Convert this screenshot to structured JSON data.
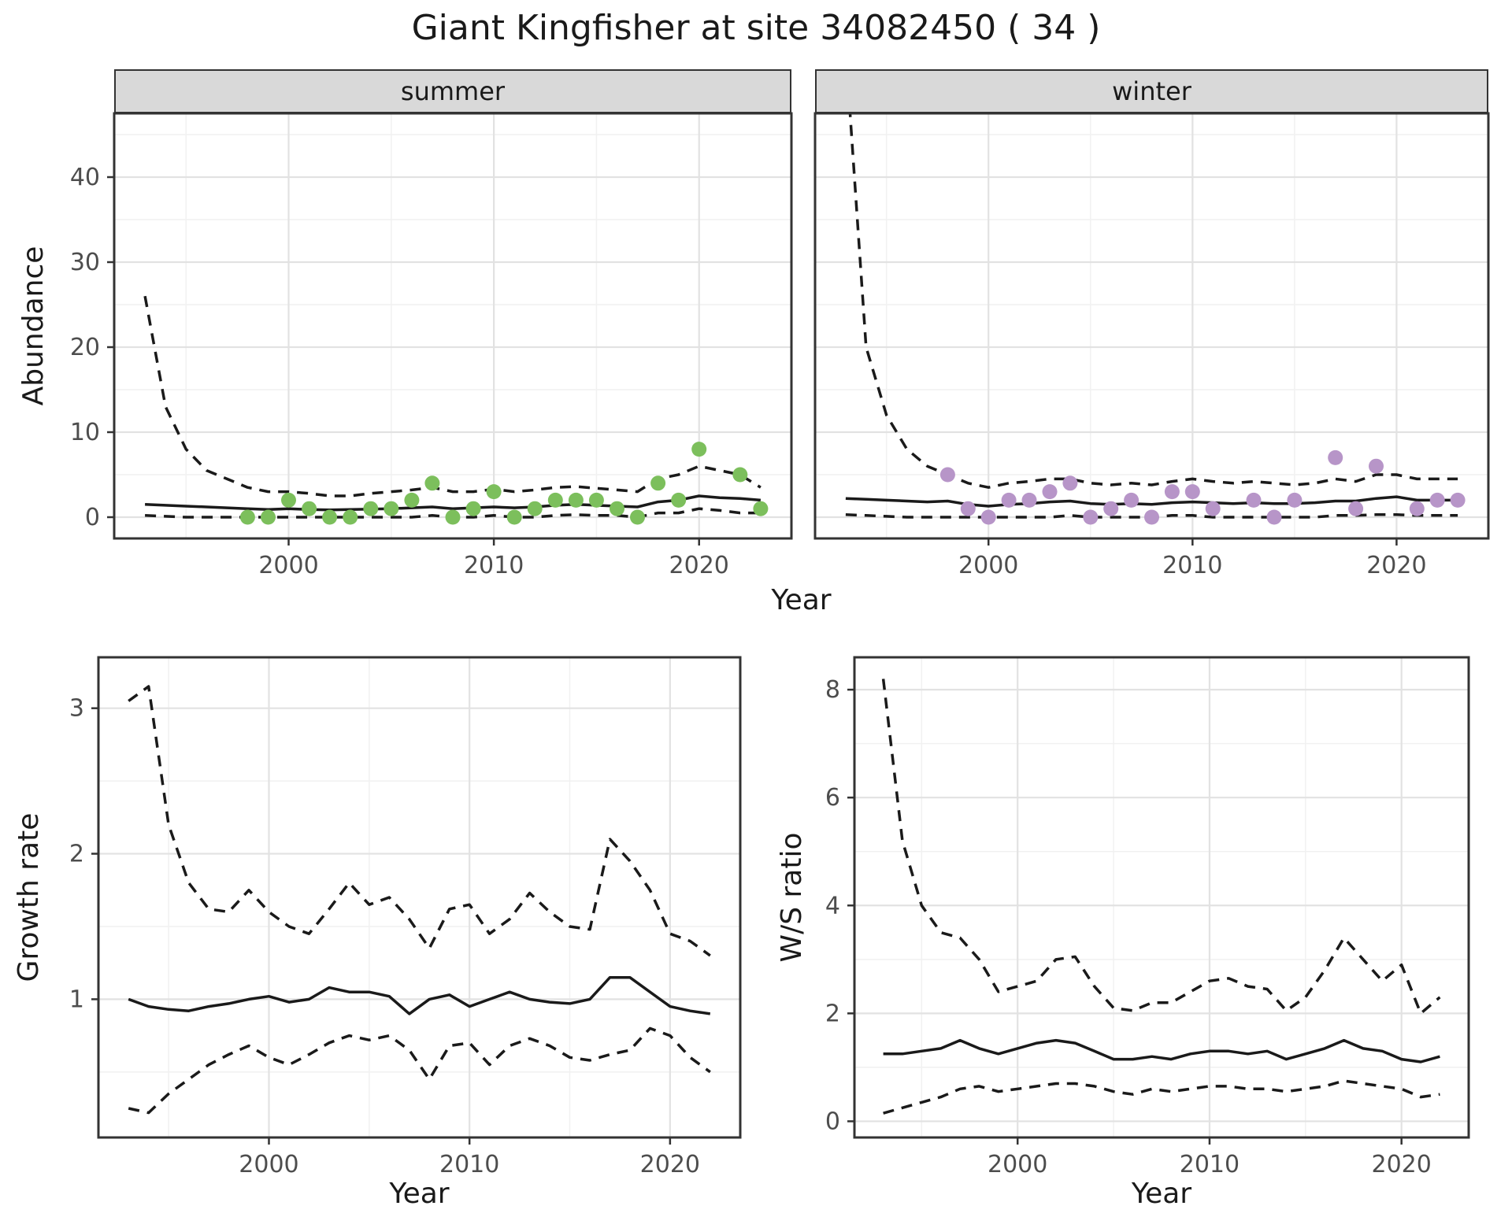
{
  "title": "Giant Kingfisher at site 34082450 ( 34 )",
  "style": {
    "summer_point_color": "#7CBF5C",
    "winter_point_color": "#B795C8",
    "line_color": "#1A1A1A",
    "panel_border_color": "#333333",
    "grid_major_color": "#E2E2E2",
    "grid_minor_color": "#F1F1F1",
    "strip_bg_color": "#D9D9D9",
    "axis_text_color": "#4D4D4D"
  },
  "chart_data": [
    {
      "id": "summer",
      "type": "line",
      "facet_label": "summer",
      "xlabel": "Year",
      "ylabel": "Abundance",
      "xlim": [
        1991.5,
        2024.5
      ],
      "ylim": [
        -2.5,
        47.5
      ],
      "xticks": [
        2000,
        2010,
        2020
      ],
      "yticks": [
        0,
        10,
        20,
        30,
        40
      ],
      "xminor": [
        1995,
        2005,
        2015
      ],
      "yminor": [
        5,
        15,
        25,
        35,
        45
      ],
      "x": [
        1993,
        1994,
        1995,
        1996,
        1997,
        1998,
        1999,
        2000,
        2001,
        2002,
        2003,
        2004,
        2005,
        2006,
        2007,
        2008,
        2009,
        2010,
        2011,
        2012,
        2013,
        2014,
        2015,
        2016,
        2017,
        2018,
        2019,
        2020,
        2021,
        2022,
        2023
      ],
      "series": [
        {
          "name": "modeled_median",
          "style": "solid",
          "values": [
            1.5,
            1.4,
            1.3,
            1.2,
            1.1,
            1.0,
            0.9,
            1.0,
            0.9,
            0.85,
            0.9,
            0.95,
            1.0,
            1.1,
            1.2,
            1.0,
            1.1,
            1.2,
            1.1,
            1.2,
            1.4,
            1.5,
            1.4,
            1.3,
            1.2,
            1.8,
            2.0,
            2.5,
            2.3,
            2.2,
            2.0
          ]
        },
        {
          "name": "upper_ci",
          "style": "dashed",
          "values": [
            26,
            13,
            8,
            5.5,
            4.5,
            3.5,
            3,
            3,
            2.8,
            2.5,
            2.5,
            2.8,
            3,
            3.2,
            3.5,
            3,
            3,
            3.3,
            3,
            3.2,
            3.5,
            3.6,
            3.4,
            3.2,
            3,
            4.5,
            5,
            6,
            5.5,
            5,
            3.5
          ]
        },
        {
          "name": "lower_ci",
          "style": "dashed",
          "values": [
            0.2,
            0.1,
            0,
            0,
            0,
            0,
            0,
            0,
            0,
            0,
            0,
            0,
            0,
            0,
            0.2,
            0,
            0,
            0.2,
            0,
            0,
            0.2,
            0.3,
            0.2,
            0.2,
            0,
            0.5,
            0.5,
            1,
            0.8,
            0.5,
            0.5
          ]
        }
      ],
      "points": {
        "name": "observed_counts",
        "color": "#7CBF5C",
        "x": [
          1998,
          1999,
          2000,
          2001,
          2002,
          2003,
          2004,
          2005,
          2006,
          2007,
          2008,
          2009,
          2010,
          2011,
          2012,
          2013,
          2014,
          2015,
          2016,
          2017,
          2018,
          2019,
          2020,
          2022,
          2023
        ],
        "y": [
          0,
          0,
          2,
          1,
          0,
          0,
          1,
          1,
          2,
          4,
          0,
          1,
          3,
          0,
          1,
          2,
          2,
          2,
          1,
          0,
          4,
          2,
          8,
          5,
          1
        ]
      }
    },
    {
      "id": "winter",
      "type": "line",
      "facet_label": "winter",
      "xlim": [
        1991.5,
        2024.5
      ],
      "ylim": [
        -2.5,
        47.5
      ],
      "xticks": [
        2000,
        2010,
        2020
      ],
      "yticks": [
        0,
        10,
        20,
        30,
        40
      ],
      "xminor": [
        1995,
        2005,
        2015
      ],
      "yminor": [
        5,
        15,
        25,
        35,
        45
      ],
      "x": [
        1993,
        1994,
        1995,
        1996,
        1997,
        1998,
        1999,
        2000,
        2001,
        2002,
        2003,
        2004,
        2005,
        2006,
        2007,
        2008,
        2009,
        2010,
        2011,
        2012,
        2013,
        2014,
        2015,
        2016,
        2017,
        2018,
        2019,
        2020,
        2021,
        2022,
        2023
      ],
      "series": [
        {
          "name": "modeled_median",
          "style": "solid",
          "values": [
            2.2,
            2.1,
            2.0,
            1.9,
            1.8,
            1.9,
            1.5,
            1.3,
            1.5,
            1.6,
            1.8,
            1.9,
            1.6,
            1.5,
            1.6,
            1.5,
            1.7,
            1.8,
            1.7,
            1.6,
            1.7,
            1.6,
            1.6,
            1.7,
            1.9,
            1.9,
            2.2,
            2.4,
            2.0,
            2.0,
            2.0
          ]
        },
        {
          "name": "upper_ci",
          "style": "dashed",
          "values": [
            55,
            20,
            12,
            8,
            6,
            5,
            4,
            3.5,
            4,
            4.2,
            4.5,
            4.5,
            4,
            3.8,
            4,
            3.8,
            4.2,
            4.5,
            4.2,
            4,
            4.2,
            4,
            3.8,
            4,
            4.5,
            4.2,
            5,
            5,
            4.5,
            4.5,
            4.5
          ]
        },
        {
          "name": "lower_ci",
          "style": "dashed",
          "values": [
            0.3,
            0.2,
            0.1,
            0,
            0,
            0,
            0,
            0,
            0,
            0,
            0,
            0.2,
            0,
            0,
            0,
            0,
            0.2,
            0.2,
            0,
            0,
            0,
            0,
            0,
            0,
            0.2,
            0.2,
            0.3,
            0.3,
            0.2,
            0.2,
            0.2
          ]
        }
      ],
      "points": {
        "name": "observed_counts",
        "color": "#B795C8",
        "x": [
          1998,
          1999,
          2000,
          2001,
          2002,
          2003,
          2004,
          2005,
          2006,
          2007,
          2008,
          2009,
          2010,
          2011,
          2013,
          2014,
          2015,
          2017,
          2018,
          2019,
          2021,
          2022,
          2023
        ],
        "y": [
          5,
          1,
          0,
          2,
          2,
          3,
          4,
          0,
          1,
          2,
          0,
          3,
          3,
          1,
          2,
          0,
          2,
          7,
          1,
          6,
          1,
          2,
          2
        ]
      }
    },
    {
      "id": "growth",
      "type": "line",
      "xlabel": "Year",
      "ylabel": "Growth rate",
      "xlim": [
        1991.5,
        2023.5
      ],
      "ylim": [
        0.05,
        3.35
      ],
      "xticks": [
        2000,
        2010,
        2020
      ],
      "yticks": [
        1,
        2,
        3
      ],
      "xminor": [
        1995,
        2005,
        2015
      ],
      "yminor": [
        0.5,
        1.5,
        2.5
      ],
      "x": [
        1993,
        1994,
        1995,
        1996,
        1997,
        1998,
        1999,
        2000,
        2001,
        2002,
        2003,
        2004,
        2005,
        2006,
        2007,
        2008,
        2009,
        2010,
        2011,
        2012,
        2013,
        2014,
        2015,
        2016,
        2017,
        2018,
        2019,
        2020,
        2021,
        2022
      ],
      "series": [
        {
          "name": "modeled_median",
          "style": "solid",
          "values": [
            1.0,
            0.95,
            0.93,
            0.92,
            0.95,
            0.97,
            1.0,
            1.02,
            0.98,
            1.0,
            1.08,
            1.05,
            1.05,
            1.02,
            0.9,
            1.0,
            1.03,
            0.95,
            1.0,
            1.05,
            1.0,
            0.98,
            0.97,
            1.0,
            1.15,
            1.15,
            1.05,
            0.95,
            0.92,
            0.9
          ]
        },
        {
          "name": "upper_ci",
          "style": "dashed",
          "values": [
            3.05,
            3.15,
            2.2,
            1.8,
            1.62,
            1.6,
            1.75,
            1.6,
            1.5,
            1.45,
            1.62,
            1.8,
            1.65,
            1.7,
            1.55,
            1.35,
            1.62,
            1.65,
            1.45,
            1.55,
            1.73,
            1.6,
            1.5,
            1.48,
            2.1,
            1.95,
            1.75,
            1.45,
            1.4,
            1.3
          ]
        },
        {
          "name": "lower_ci",
          "style": "dashed",
          "values": [
            0.25,
            0.22,
            0.35,
            0.45,
            0.55,
            0.62,
            0.68,
            0.6,
            0.55,
            0.62,
            0.7,
            0.75,
            0.72,
            0.75,
            0.65,
            0.45,
            0.68,
            0.7,
            0.55,
            0.68,
            0.73,
            0.68,
            0.6,
            0.58,
            0.62,
            0.65,
            0.8,
            0.75,
            0.6,
            0.5
          ]
        }
      ]
    },
    {
      "id": "ws",
      "type": "line",
      "xlabel": "Year",
      "ylabel": "W/S ratio",
      "xlim": [
        1991.5,
        2023.5
      ],
      "ylim": [
        -0.3,
        8.6
      ],
      "xticks": [
        2000,
        2010,
        2020
      ],
      "yticks": [
        0,
        2,
        4,
        6,
        8
      ],
      "xminor": [
        1995,
        2005,
        2015
      ],
      "yminor": [
        1,
        3,
        5,
        7
      ],
      "x": [
        1993,
        1994,
        1995,
        1996,
        1997,
        1998,
        1999,
        2000,
        2001,
        2002,
        2003,
        2004,
        2005,
        2006,
        2007,
        2008,
        2009,
        2010,
        2011,
        2012,
        2013,
        2014,
        2015,
        2016,
        2017,
        2018,
        2019,
        2020,
        2021,
        2022
      ],
      "series": [
        {
          "name": "modeled_median",
          "style": "solid",
          "values": [
            1.25,
            1.25,
            1.3,
            1.35,
            1.5,
            1.35,
            1.25,
            1.35,
            1.45,
            1.5,
            1.45,
            1.3,
            1.15,
            1.15,
            1.2,
            1.15,
            1.25,
            1.3,
            1.3,
            1.25,
            1.3,
            1.15,
            1.25,
            1.35,
            1.5,
            1.35,
            1.3,
            1.15,
            1.1,
            1.2
          ]
        },
        {
          "name": "upper_ci",
          "style": "dashed",
          "values": [
            8.2,
            5.2,
            4.0,
            3.5,
            3.4,
            3.0,
            2.4,
            2.5,
            2.6,
            3.0,
            3.05,
            2.5,
            2.1,
            2.05,
            2.2,
            2.2,
            2.4,
            2.6,
            2.65,
            2.5,
            2.45,
            2.05,
            2.3,
            2.8,
            3.4,
            3.0,
            2.6,
            2.9,
            2.0,
            2.3
          ]
        },
        {
          "name": "lower_ci",
          "style": "dashed",
          "values": [
            0.15,
            0.25,
            0.35,
            0.45,
            0.6,
            0.65,
            0.55,
            0.6,
            0.65,
            0.7,
            0.7,
            0.65,
            0.55,
            0.5,
            0.6,
            0.55,
            0.6,
            0.65,
            0.65,
            0.6,
            0.6,
            0.55,
            0.6,
            0.65,
            0.75,
            0.7,
            0.65,
            0.6,
            0.45,
            0.5
          ]
        }
      ]
    }
  ]
}
